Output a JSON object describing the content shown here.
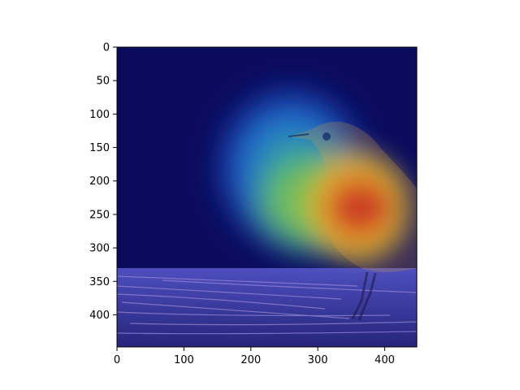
{
  "chart_data": {
    "type": "heatmap",
    "description_visible": "Image shown with a jet-colormap attention heatmap overlay",
    "title": "",
    "xlabel": "",
    "ylabel": "",
    "xlim": [
      0,
      448
    ],
    "ylim": [
      448,
      0
    ],
    "x_ticks": [
      0,
      100,
      200,
      300,
      400
    ],
    "y_ticks": [
      0,
      50,
      100,
      150,
      200,
      250,
      300,
      350,
      400
    ],
    "x_tick_labels": [
      "0",
      "100",
      "200",
      "300",
      "400"
    ],
    "y_tick_labels": [
      "0",
      "50",
      "100",
      "150",
      "200",
      "250",
      "300",
      "350",
      "400"
    ],
    "colormap": "jet",
    "heatmap_peak": {
      "x": 365,
      "y": 240,
      "value": 1.0
    },
    "attention_regions": [
      {
        "x": 360,
        "y": 240,
        "rx": 85,
        "ry": 90,
        "level": 0.85
      },
      {
        "x": 300,
        "y": 230,
        "rx": 120,
        "ry": 100,
        "level": 0.5
      },
      {
        "x": 260,
        "y": 180,
        "rx": 130,
        "ry": 140,
        "level": 0.3
      }
    ],
    "colors": {
      "low": "#0b0b5e",
      "mid_low": "#1a4fd0",
      "mid": "#2fb7a8",
      "mid_high": "#a8c83a",
      "high": "#e0a020",
      "peak": "#c81e1e"
    }
  }
}
